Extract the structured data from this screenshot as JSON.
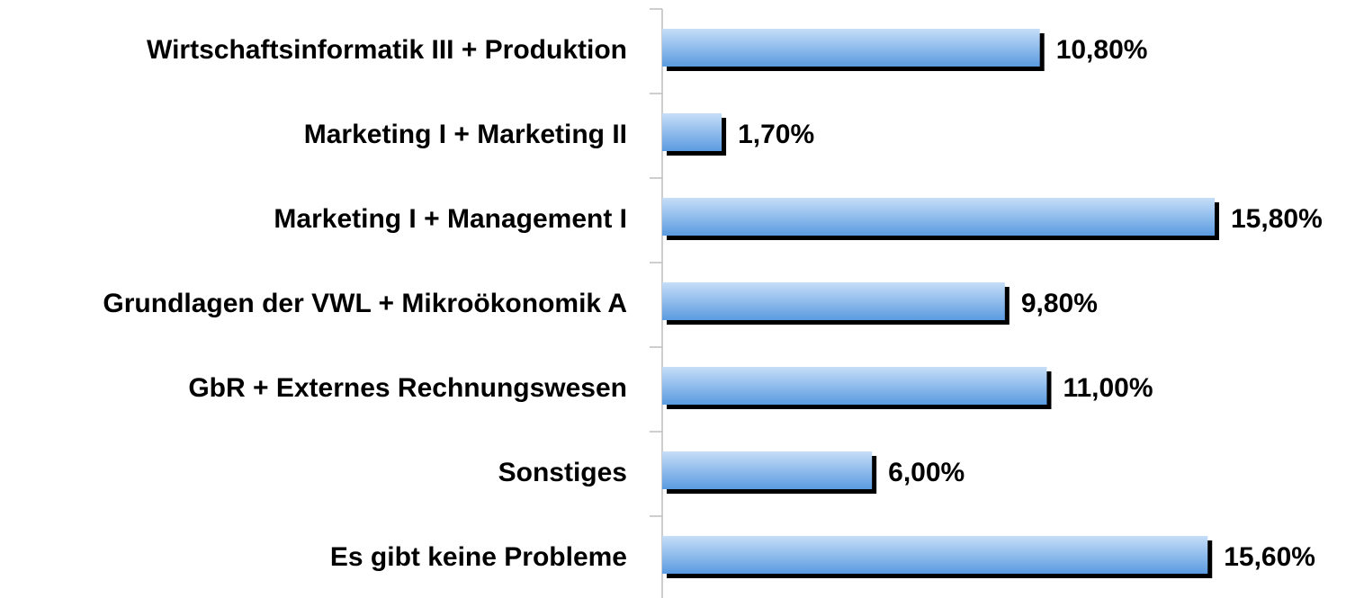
{
  "chart_data": {
    "type": "bar",
    "orientation": "horizontal",
    "categories": [
      "Wirtschaftsinformatik III + Produktion",
      "Marketing I + Marketing II",
      "Marketing I + Management I",
      "Grundlagen der VWL + Mikroökonomik A",
      "GbR + Externes Rechnungswesen",
      "Sonstiges",
      "Es gibt keine Probleme"
    ],
    "values": [
      10.8,
      1.7,
      15.8,
      9.8,
      11.0,
      6.0,
      15.6
    ],
    "value_labels": [
      "10,80%",
      "1,70%",
      "15,80%",
      "9,80%",
      "11,00%",
      "6,00%",
      "15,60%"
    ],
    "color": "#5a9be0"
  }
}
